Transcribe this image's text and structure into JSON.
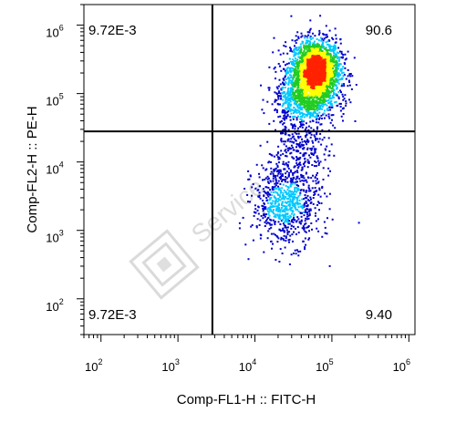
{
  "chart_data": {
    "type": "scatter",
    "plot_style": "flow cytometry density dot plot",
    "xlabel": "Comp-FL1-H :: FITC-H",
    "ylabel": "Comp-FL2-H :: PE-H",
    "x_scale": "log",
    "y_scale": "log",
    "xlim": [
      60,
      1200000
    ],
    "ylim": [
      30,
      2000000
    ],
    "x_ticks": [
      {
        "base": "10",
        "exp": "2",
        "value": 100
      },
      {
        "base": "10",
        "exp": "3",
        "value": 1000
      },
      {
        "base": "10",
        "exp": "4",
        "value": 10000
      },
      {
        "base": "10",
        "exp": "5",
        "value": 100000
      },
      {
        "base": "10",
        "exp": "6",
        "value": 1000000
      }
    ],
    "y_ticks": [
      {
        "base": "10",
        "exp": "2",
        "value": 100
      },
      {
        "base": "10",
        "exp": "3",
        "value": 1000
      },
      {
        "base": "10",
        "exp": "4",
        "value": 10000
      },
      {
        "base": "10",
        "exp": "5",
        "value": 100000
      },
      {
        "base": "10",
        "exp": "6",
        "value": 1000000
      }
    ],
    "gate": {
      "x": 2800,
      "y": 28000
    },
    "quadrants": [
      {
        "position": "top-left",
        "value": "9.72E-3"
      },
      {
        "position": "top-right",
        "value": "90.6"
      },
      {
        "position": "bottom-left",
        "value": "9.72E-3"
      },
      {
        "position": "bottom-right",
        "value": "9.40"
      }
    ],
    "populations": [
      {
        "label": "",
        "center": [
          60000,
          230000
        ],
        "spread_log": [
          0.16,
          0.22
        ],
        "weight": 0.55
      },
      {
        "label": "",
        "center": [
          45000,
          90000
        ],
        "spread_log": [
          0.2,
          0.2
        ],
        "weight": 0.2
      },
      {
        "label": "",
        "center": [
          25000,
          2500
        ],
        "spread_log": [
          0.22,
          0.3
        ],
        "weight": 0.18
      },
      {
        "label": "",
        "center": [
          35000,
          15000
        ],
        "spread_log": [
          0.2,
          0.25
        ],
        "weight": 0.07
      }
    ],
    "colors": {
      "low": "#0000cc",
      "mid_low": "#00c8ff",
      "mid": "#22cc22",
      "mid_high": "#ffff00",
      "high": "#ff2200"
    }
  },
  "watermark": {
    "text": "Service",
    "icon": "company-logo-icon"
  }
}
